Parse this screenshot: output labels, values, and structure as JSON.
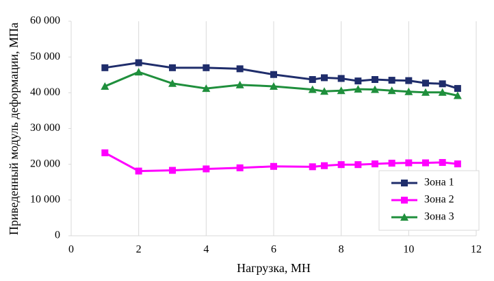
{
  "chart_data": {
    "type": "line",
    "x_label": "Нагрузка, МН",
    "y_label": "Приведенный модуль деформации, МПа",
    "x": [
      1,
      2,
      3,
      4,
      5,
      6,
      7.15,
      7.5,
      8,
      8.5,
      9,
      9.5,
      10,
      10.5,
      11,
      11.45
    ],
    "series": [
      {
        "name": "Зона 1",
        "color": "#1f2d6b",
        "marker": "square",
        "values": [
          47000,
          48400,
          47000,
          47000,
          46700,
          45100,
          43700,
          44200,
          44000,
          43300,
          43700,
          43500,
          43400,
          42700,
          42500,
          41200
        ]
      },
      {
        "name": "Зона 2",
        "color": "#ff00ff",
        "marker": "square",
        "values": [
          23200,
          18100,
          18300,
          18700,
          19000,
          19400,
          19300,
          19600,
          19900,
          19900,
          20100,
          20300,
          20400,
          20400,
          20500,
          20100
        ]
      },
      {
        "name": "Зона 3",
        "color": "#1f8f3c",
        "marker": "triangle",
        "values": [
          41800,
          45800,
          42600,
          41200,
          42200,
          41800,
          40900,
          40400,
          40600,
          41000,
          40900,
          40600,
          40300,
          40100,
          40100,
          39200
        ]
      }
    ],
    "xlim": [
      0,
      12
    ],
    "xticks": [
      0,
      2,
      4,
      6,
      8,
      10,
      12
    ],
    "ylim": [
      0,
      60000
    ],
    "yticks": [
      0,
      {
        "value": 10000,
        "label": "10 000"
      },
      {
        "value": 20000,
        "label": "20 000"
      },
      {
        "value": 30000,
        "label": "30 000"
      },
      {
        "value": 40000,
        "label": "40 000"
      },
      {
        "value": 50000,
        "label": "50 000"
      },
      {
        "value": 60000,
        "label": "60 000"
      }
    ],
    "grid": "x",
    "legend_position": "lower right"
  }
}
